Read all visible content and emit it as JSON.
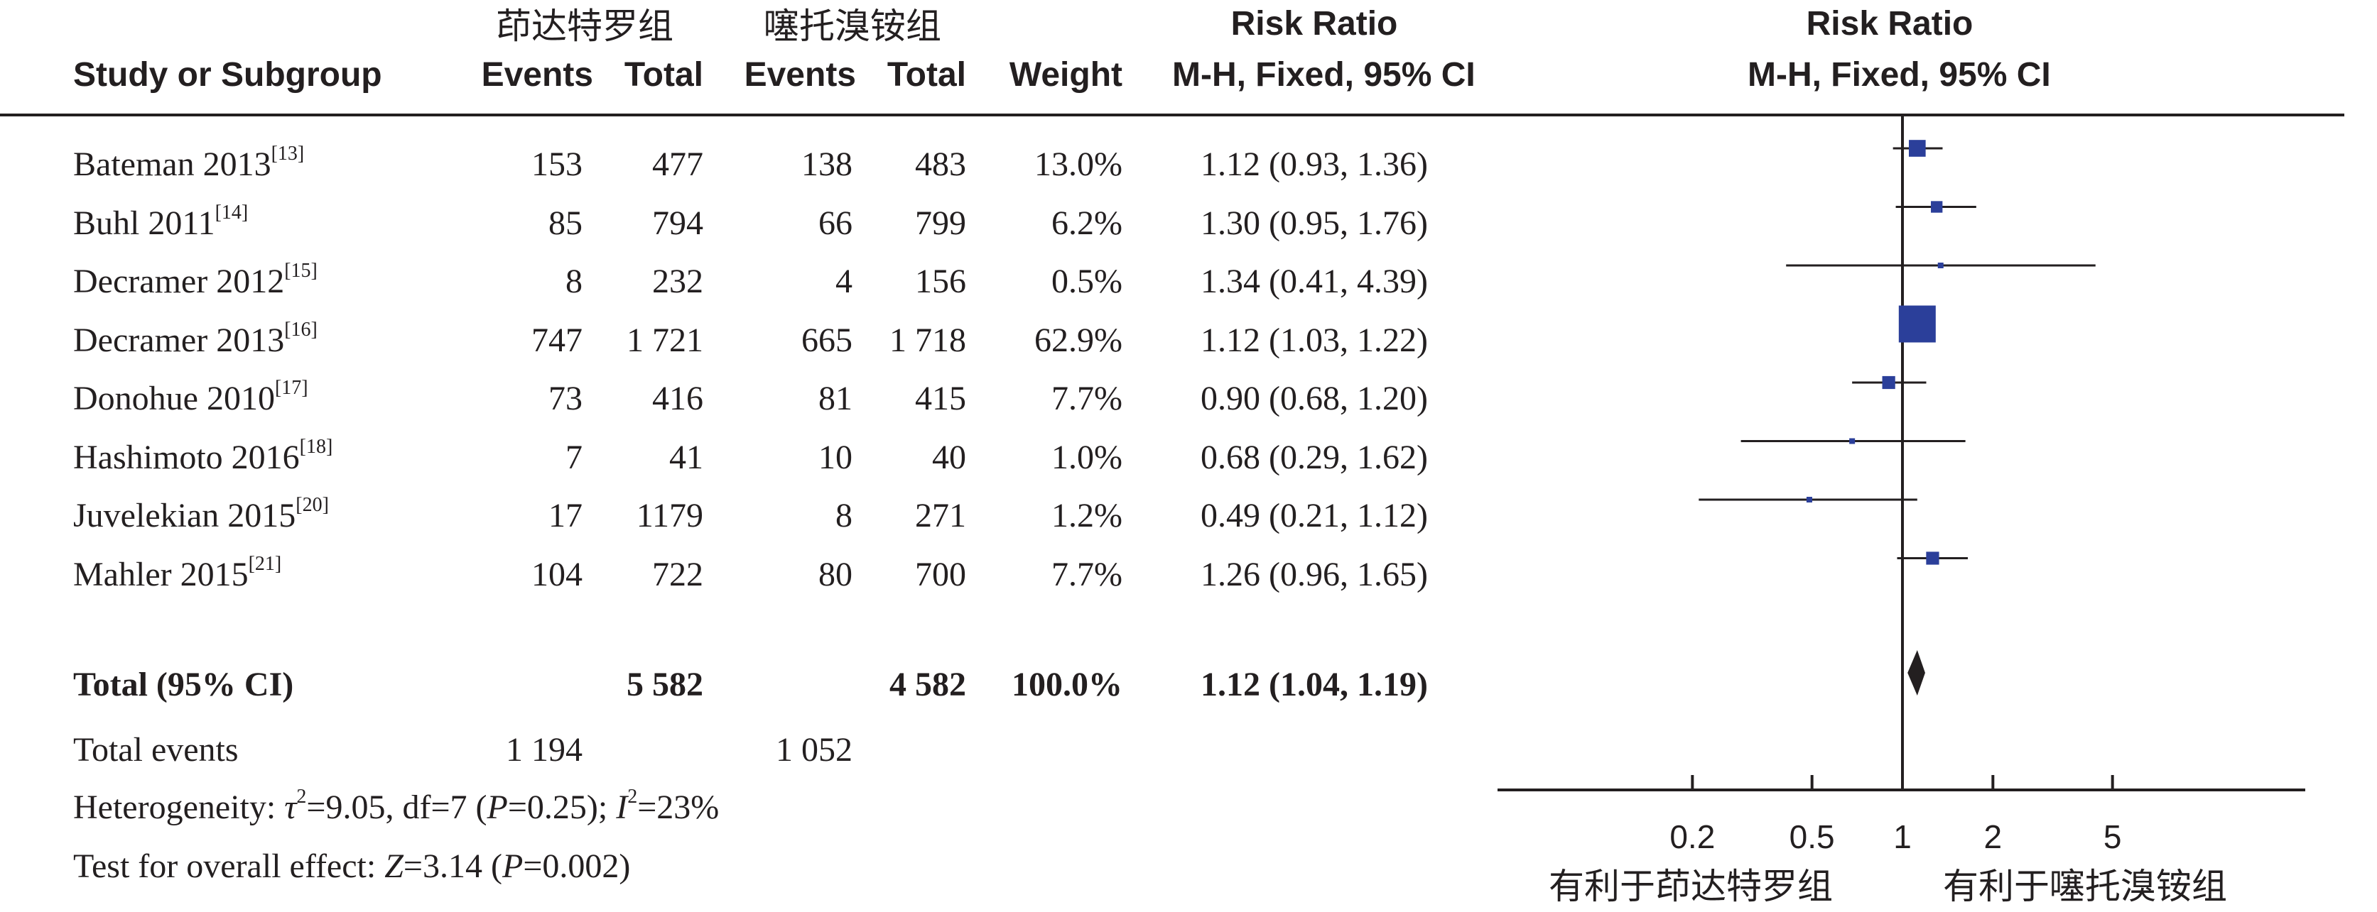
{
  "header": {
    "study_col": "Study or Subgroup",
    "group1_label": "茚达特罗组",
    "group2_label": "噻托溴铵组",
    "events_label": "Events",
    "total_label": "Total",
    "weight_label": "Weight",
    "rr_title": "Risk Ratio",
    "rr_method": "M-H, Fixed, 95% CI",
    "plot_title": "Risk Ratio",
    "plot_method": "M-H, Fixed, 95% CI"
  },
  "studies": [
    {
      "name": "Bateman  2013",
      "ref": "[13]",
      "e1": "153",
      "t1": "477",
      "e2": "138",
      "t2": "483",
      "weight": "13.0%",
      "ci_text": "1.12 (0.93, 1.36)"
    },
    {
      "name": "Buhl 2011",
      "ref": "[14]",
      "e1": "85",
      "t1": "794",
      "e2": "66",
      "t2": "799",
      "weight": "6.2%",
      "ci_text": "1.30 (0.95, 1.76)"
    },
    {
      "name": "Decramer 2012",
      "ref": "[15]",
      "e1": "8",
      "t1": "232",
      "e2": "4",
      "t2": "156",
      "weight": "0.5%",
      "ci_text": "1.34 (0.41, 4.39)"
    },
    {
      "name": "Decramer 2013",
      "ref": "[16]",
      "e1": "747",
      "t1": "1 721",
      "e2": "665",
      "t2": "1 718",
      "weight": "62.9%",
      "ci_text": "1.12 (1.03, 1.22)"
    },
    {
      "name": "Donohue  2010",
      "ref": "[17]",
      "e1": "73",
      "t1": "416",
      "e2": "81",
      "t2": "415",
      "weight": "7.7%",
      "ci_text": "0.90 (0.68, 1.20)"
    },
    {
      "name": "Hashimoto 2016",
      "ref": "[18]",
      "e1": "7",
      "t1": "41",
      "e2": "10",
      "t2": "40",
      "weight": "1.0%",
      "ci_text": "0.68 (0.29, 1.62)"
    },
    {
      "name": "Juvelekian 2015",
      "ref": "[20]",
      "e1": "17",
      "t1": "1179",
      "e2": "8",
      "t2": "271",
      "weight": "1.2%",
      "ci_text": "0.49 (0.21, 1.12)"
    },
    {
      "name": "Mahler 2015",
      "ref": "[21]",
      "e1": "104",
      "t1": "722",
      "e2": "80",
      "t2": "700",
      "weight": "7.7%",
      "ci_text": "1.26 (0.96, 1.65)"
    }
  ],
  "total": {
    "label": "Total (95% CI)",
    "t1": "5 582",
    "t2": "4 582",
    "weight": "100.0%",
    "ci_text": "1.12 (1.04, 1.19)"
  },
  "total_events": {
    "label": "Total events",
    "e1": "1 194",
    "e2": "1 052"
  },
  "heterogeneity": {
    "prefix": "Heterogeneity: ",
    "tau": "τ",
    "tau_val": "=9.05, df=7 (",
    "p": "P",
    "p_val": "=0.25); ",
    "i": "I",
    "i_val": "=23%"
  },
  "overall_test": {
    "prefix": "Test for overall effect: ",
    "z": "Z",
    "z_val": "=3.14 (",
    "p": "P",
    "p_val": "=0.002)"
  },
  "axis": {
    "ticks": [
      "0.2",
      "0.5",
      "1",
      "2",
      "5"
    ],
    "favors_left": "有利于茚达特罗组",
    "favors_right": "有利于噻托溴铵组"
  },
  "colors": {
    "marker": "#2b3f9a",
    "diamond": "#231f20",
    "line": "#231f20"
  },
  "chart_data": {
    "type": "forest",
    "scale": "log",
    "xlim": [
      0.1,
      10
    ],
    "ticks": [
      0.2,
      0.5,
      1,
      2,
      5
    ],
    "series": [
      {
        "study": "Bateman  2013",
        "rr": 1.12,
        "lo": 0.93,
        "hi": 1.36,
        "weight": 13.0
      },
      {
        "study": "Buhl 2011",
        "rr": 1.3,
        "lo": 0.95,
        "hi": 1.76,
        "weight": 6.2
      },
      {
        "study": "Decramer 2012",
        "rr": 1.34,
        "lo": 0.41,
        "hi": 4.39,
        "weight": 0.5
      },
      {
        "study": "Decramer 2013",
        "rr": 1.12,
        "lo": 1.03,
        "hi": 1.22,
        "weight": 62.9
      },
      {
        "study": "Donohue  2010",
        "rr": 0.9,
        "lo": 0.68,
        "hi": 1.2,
        "weight": 7.7
      },
      {
        "study": "Hashimoto 2016",
        "rr": 0.68,
        "lo": 0.29,
        "hi": 1.62,
        "weight": 1.0
      },
      {
        "study": "Juvelekian 2015",
        "rr": 0.49,
        "lo": 0.21,
        "hi": 1.12,
        "weight": 1.2
      },
      {
        "study": "Mahler 2015",
        "rr": 1.26,
        "lo": 0.96,
        "hi": 1.65,
        "weight": 7.7
      }
    ],
    "pooled": {
      "rr": 1.12,
      "lo": 1.04,
      "hi": 1.19
    }
  }
}
